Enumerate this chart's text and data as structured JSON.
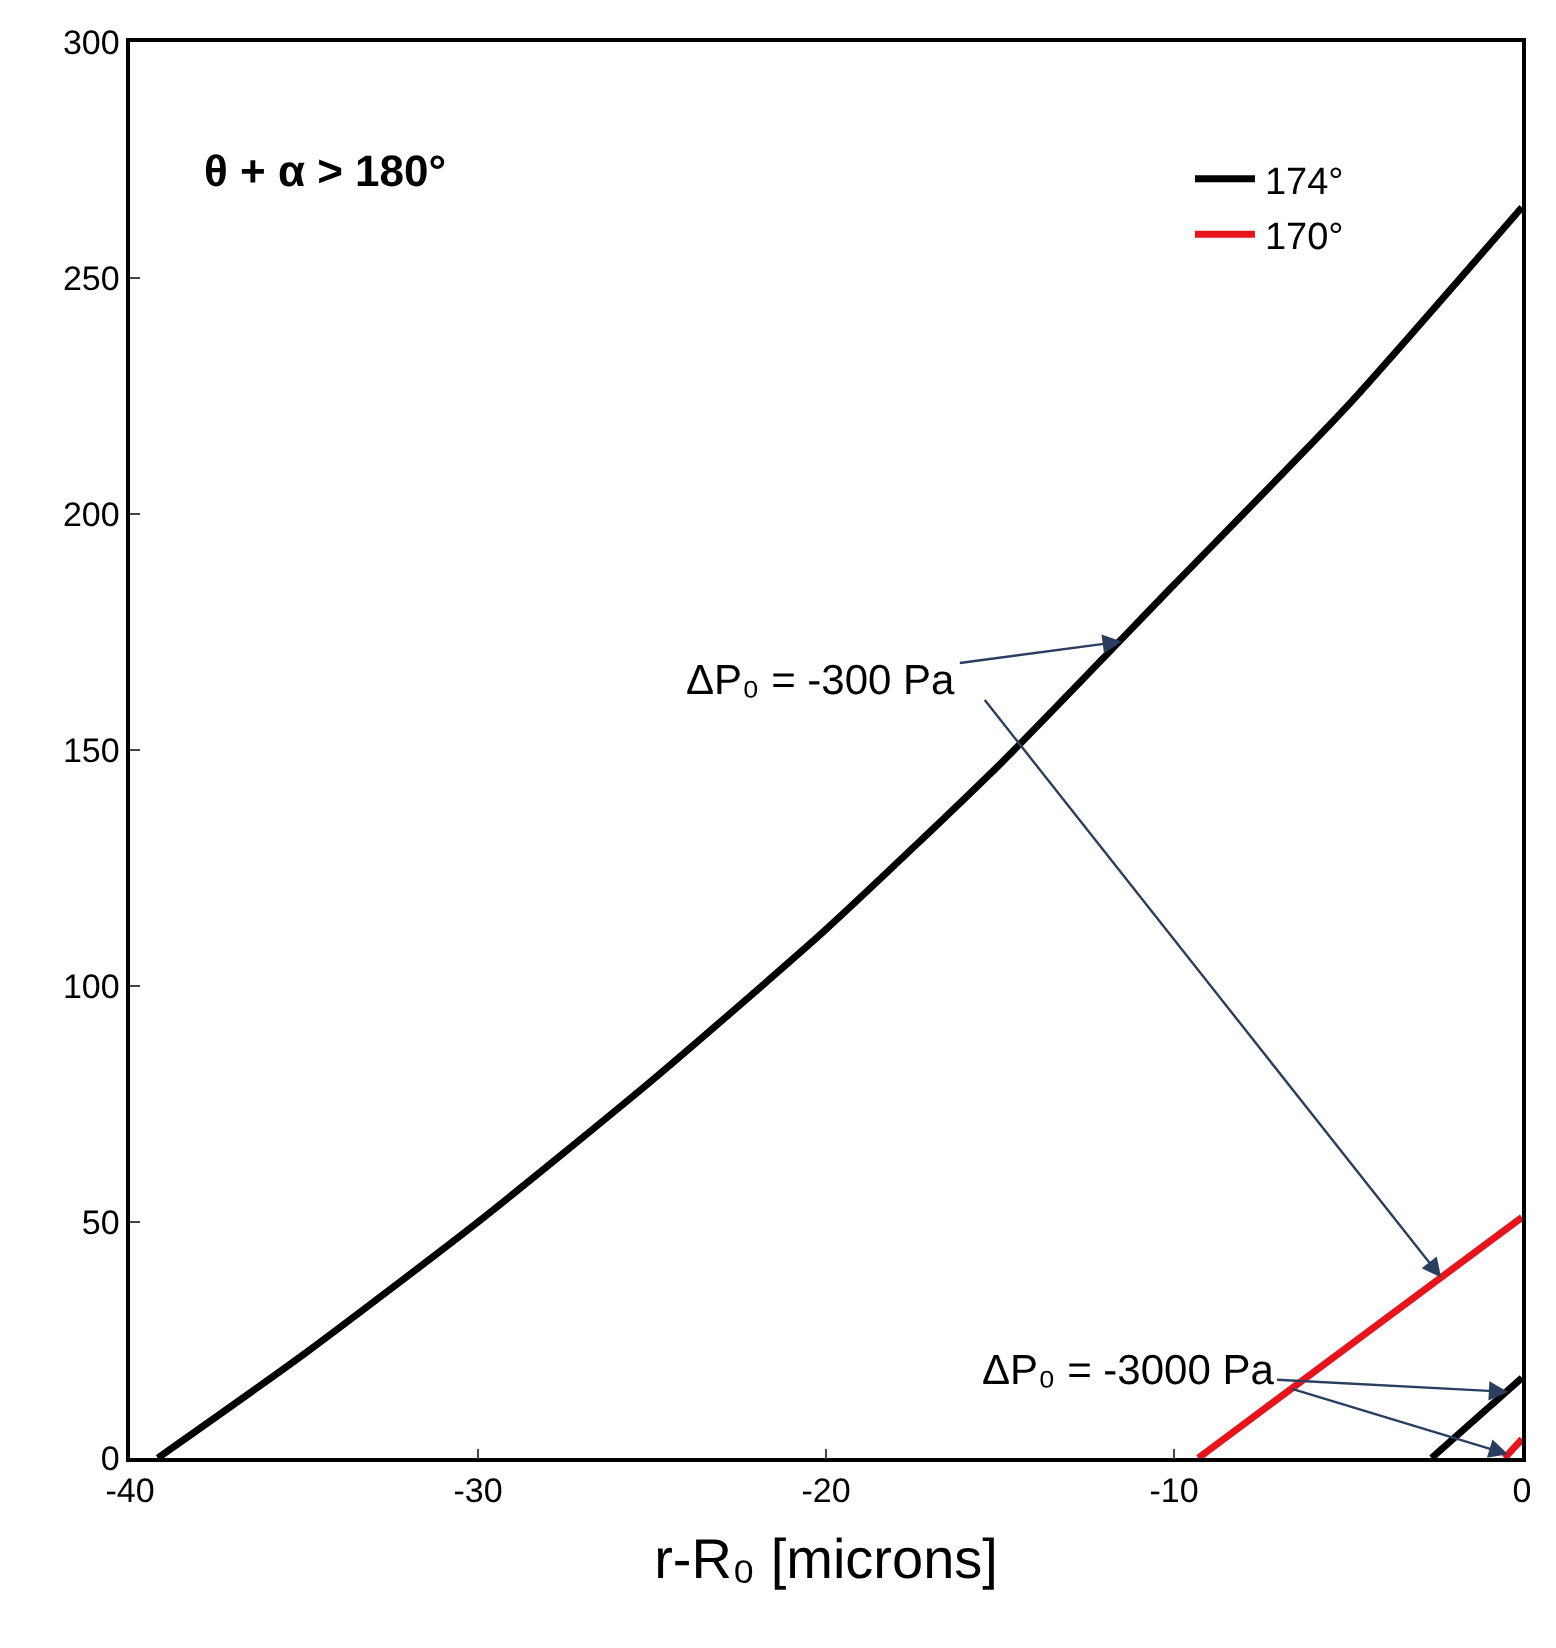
{
  "chart_data": {
    "type": "line",
    "xlabel": "r-R₀ [microns]",
    "xlim": [
      -40,
      0
    ],
    "xticks": [
      -40,
      -30,
      -20,
      -10,
      0
    ],
    "ylim": [
      0,
      300
    ],
    "yticks": [
      0,
      50,
      100,
      150,
      200,
      250,
      300
    ],
    "legend": "top right",
    "marker": "none",
    "line_style": "solid",
    "series": [
      {
        "name": "174°",
        "color": "#000000",
        "x": [
          -39.2,
          -35,
          -30,
          -25,
          -20,
          -15,
          -10,
          -5,
          0
        ],
        "values": [
          0,
          22,
          50,
          80,
          112,
          147,
          185,
          223,
          265
        ]
      },
      {
        "name": "170°",
        "color": "#e8141c",
        "x": [
          -9.3,
          0
        ],
        "values": [
          0,
          51
        ]
      },
      {
        "color": "#000000",
        "x": [
          -2.6,
          0
        ],
        "values": [
          0,
          17
        ]
      },
      {
        "color": "#e8141c",
        "x": [
          -0.5,
          0
        ],
        "values": [
          0,
          4
        ]
      }
    ],
    "annotations": [
      "θ + α > 180°",
      {
        "text": "ΔP₀ = -300 Pa",
        "x": -11.5,
        "y": 173
      },
      {
        "text": "ΔP₀ = -3000 Pa",
        "x": -0.4,
        "y": 14
      }
    ]
  }
}
